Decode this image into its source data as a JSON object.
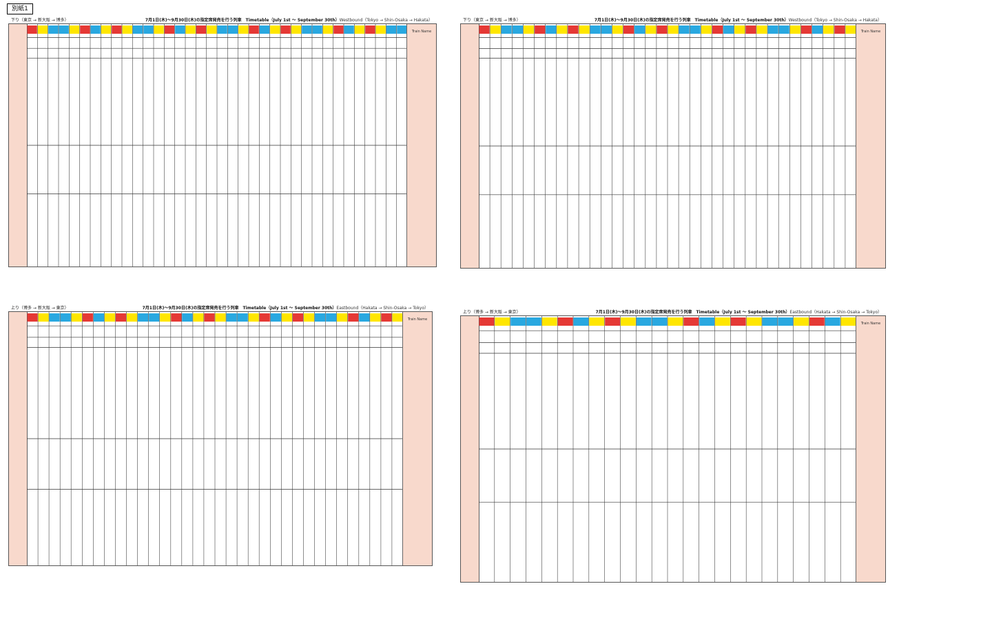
{
  "tag": "別紙1",
  "panels": [
    {
      "direction": "下り（東京 → 新大阪 → 博多）",
      "title": "7月1日(木)～9月30日(木)の指定席発売を行う列車　Timetable（July 1st ～ September 30th）",
      "wayboard": "Westbound（Tokyo → Shin-Osaka → Hakata）",
      "right_label": "Train Name"
    },
    {
      "direction": "下り（東京 → 新大阪 → 博多）",
      "title": "7月1日(木)～9月30日(木)の指定席発売を行う列車　Timetable（July 1st ～ September 30th）",
      "wayboard": "Westbound（Tokyo → Shin-Osaka → Hakata）",
      "right_label": "Train Name"
    },
    {
      "direction": "上り（博多 → 新大阪 → 東京）",
      "title": "7月1日(木)～9月30日(木)の指定席発売を行う列車　Timetable（July 1st ～ September 30th）",
      "wayboard": "Eastbound（Hakata → Shin-Osaka → Tokyo）",
      "right_label": "Train Name"
    },
    {
      "direction": "上り（博多 → 新大阪 → 東京）",
      "title": "7月1日(木)～9月30日(木)の指定席発売を行う列車　Timetable（July 1st ～ September 30th）",
      "wayboard": "Eastbound（Hakata → Shin-Osaka → Tokyo）",
      "right_label": "Train Name"
    }
  ],
  "colors": {
    "red": "#e53935",
    "yellow": "#ffe600",
    "blue": "#29a8e0",
    "pink": "#f8d9cc"
  }
}
